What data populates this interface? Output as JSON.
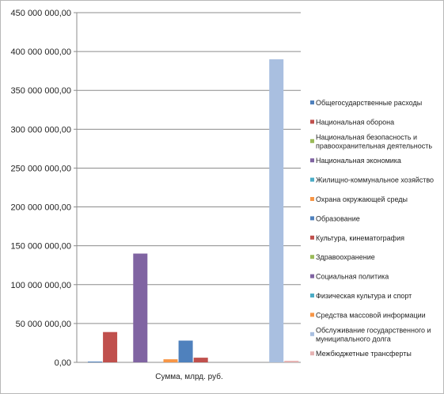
{
  "chart_data": {
    "type": "bar",
    "xlabel": "Сумма, млрд. руб.",
    "ylim": [
      0,
      450000000
    ],
    "ytick_step": 50000000,
    "ytick_labels": [
      "0,00",
      "50 000 000,00",
      "100 000 000,00",
      "150 000 000,00",
      "200 000 000,00",
      "250 000 000,00",
      "300 000 000,00",
      "350 000 000,00",
      "400 000 000,00",
      "450 000 000,00"
    ],
    "grid": true,
    "legend_position": "right",
    "series": [
      {
        "name": "Общегосударственные расходы",
        "value": 1000000,
        "color": "#4f81bd"
      },
      {
        "name": "Национальная оборона",
        "value": 39000000,
        "color": "#c0504d"
      },
      {
        "name": "Национальная безопасность и правоохранительная деятельность",
        "value": 0,
        "color": "#9bbb59"
      },
      {
        "name": "Национальная экономика",
        "value": 140000000,
        "color": "#8064a2"
      },
      {
        "name": "Жилищно-коммунальное хозяйство",
        "value": 0,
        "color": "#4bacc6"
      },
      {
        "name": "Охрана окружающей среды",
        "value": 4000000,
        "color": "#f79646"
      },
      {
        "name": "Образование",
        "value": 28000000,
        "color": "#4f81bd"
      },
      {
        "name": "Культура, кинематография",
        "value": 6000000,
        "color": "#c0504d"
      },
      {
        "name": "Здравоохранение",
        "value": 0,
        "color": "#9bbb59"
      },
      {
        "name": "Социальная политика",
        "value": 0,
        "color": "#8064a2"
      },
      {
        "name": "Физическая культура и спорт",
        "value": 0,
        "color": "#4bacc6"
      },
      {
        "name": "Средства массовой информации",
        "value": 0,
        "color": "#f79646"
      },
      {
        "name": "Обслуживание государственного и муниципального долга",
        "value": 390000000,
        "color": "#a9bfe0"
      },
      {
        "name": "Межбюджетные трансферты",
        "value": 2000000,
        "color": "#e6b3b3"
      }
    ]
  }
}
